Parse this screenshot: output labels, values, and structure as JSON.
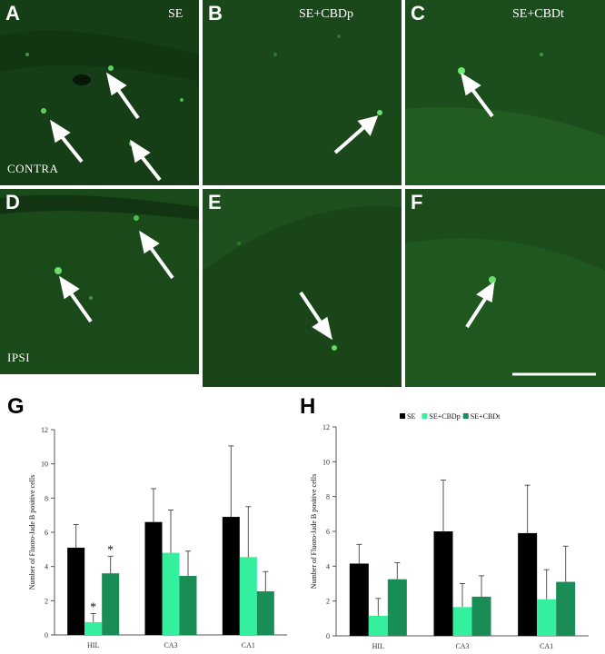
{
  "panels": [
    {
      "letter": "A",
      "condition": "SE",
      "side": "CONTRA",
      "bg": "#173f17"
    },
    {
      "letter": "B",
      "condition": "SE+CBDp",
      "side": "",
      "bg": "#1b4a1b"
    },
    {
      "letter": "C",
      "condition": "SE+CBDt",
      "side": "",
      "bg": "#1c4c1c"
    },
    {
      "letter": "D",
      "condition": "",
      "side": "IPSI",
      "bg": "#1a4a1a"
    },
    {
      "letter": "E",
      "condition": "",
      "side": "",
      "bg": "#194419"
    },
    {
      "letter": "F",
      "condition": "",
      "side": "",
      "bg": "#1c4c1c"
    }
  ],
  "colors": {
    "SE": "#000000",
    "SE+CBDp": "#33ef9e",
    "SE+CBDt": "#1a8c55"
  },
  "chart_data": [
    {
      "type": "bar",
      "panel_label": "G",
      "categories": [
        "HIL",
        "CA3",
        "CA1"
      ],
      "series": [
        {
          "name": "SE",
          "values": [
            5.1,
            6.6,
            6.9
          ],
          "errors": [
            1.35,
            1.95,
            4.15
          ]
        },
        {
          "name": "SE+CBDp",
          "values": [
            0.75,
            4.8,
            4.55
          ],
          "errors": [
            0.5,
            2.5,
            2.95
          ]
        },
        {
          "name": "SE+CBDt",
          "values": [
            3.6,
            3.45,
            2.55
          ],
          "errors": [
            1.0,
            1.45,
            1.15
          ]
        }
      ],
      "annotations": [
        {
          "category": "HIL",
          "series": "SE+CBDp",
          "text": "*"
        },
        {
          "category": "HIL",
          "series": "SE+CBDt",
          "text": "*"
        }
      ],
      "ylabel": "Number of Fluoro-Jade B positive cells",
      "xlabel": "",
      "ylim": [
        0,
        12
      ],
      "yticks": [
        0,
        2,
        4,
        6,
        8,
        10,
        12
      ],
      "legend": false
    },
    {
      "type": "bar",
      "panel_label": "H",
      "categories": [
        "HIL",
        "CA3",
        "CA1"
      ],
      "series": [
        {
          "name": "SE",
          "values": [
            4.15,
            6.0,
            5.9
          ],
          "errors": [
            1.1,
            2.95,
            2.75
          ]
        },
        {
          "name": "SE+CBDp",
          "values": [
            1.15,
            1.65,
            2.1
          ],
          "errors": [
            1.0,
            1.35,
            1.7
          ]
        },
        {
          "name": "SE+CBDt",
          "values": [
            3.25,
            2.25,
            3.1
          ],
          "errors": [
            0.95,
            1.2,
            2.05
          ]
        }
      ],
      "annotations": [],
      "ylabel": "Number of Fluoro-Jade B positive cells",
      "xlabel": "",
      "ylim": [
        0,
        12
      ],
      "yticks": [
        0,
        2,
        4,
        6,
        8,
        10,
        12
      ],
      "legend": true,
      "legend_position": "top"
    }
  ]
}
